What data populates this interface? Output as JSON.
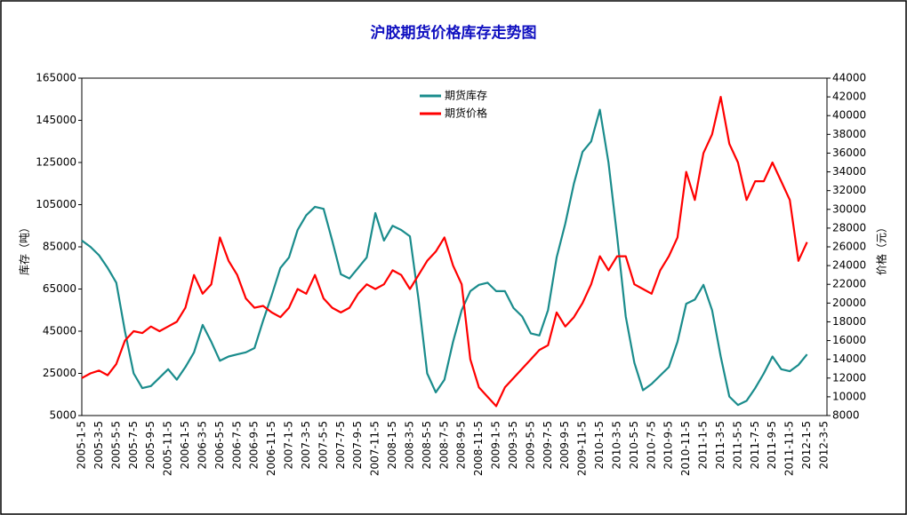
{
  "chart_data": {
    "type": "line",
    "title": "沪胶期货价格库存走势图",
    "y_label": "库存（吨）",
    "y2_label": "价格（元）",
    "categories": [
      "2005-1-5",
      null,
      "2005-3-5",
      null,
      "2005-5-5",
      null,
      "2005-7-5",
      null,
      "2005-9-5",
      null,
      "2005-11-5",
      null,
      "2006-1-5",
      null,
      "2006-3-5",
      null,
      "2006-5-5",
      null,
      "2006-7-5",
      null,
      "2006-9-5",
      null,
      "2006-11-5",
      null,
      "2007-1-5",
      null,
      "2007-3-5",
      null,
      "2007-5-5",
      null,
      "2007-7-5",
      null,
      "2007-9-5",
      null,
      "2007-11-5",
      null,
      "2008-1-5",
      null,
      "2008-3-5",
      null,
      "2008-5-5",
      null,
      "2008-7-5",
      null,
      "2008-9-5",
      null,
      "2008-11-5",
      null,
      "2009-1-5",
      null,
      "2009-3-5",
      null,
      "2009-5-5",
      null,
      "2009-7-5",
      null,
      "2009-9-5",
      null,
      "2009-11-5",
      null,
      "2010-1-5",
      null,
      "2010-3-5",
      null,
      "2010-5-5",
      null,
      "2010-7-5",
      null,
      "2010-9-5",
      null,
      "2010-11-5",
      null,
      "2011-1-5",
      null,
      "2011-3-5",
      null,
      "2011-5-5",
      null,
      "2011-7-5",
      null,
      "2011-9-5",
      null,
      "2011-11-5",
      null,
      "2012-1-5",
      null,
      "2012-3-5"
    ],
    "series": [
      {
        "name": "期货库存",
        "color": "#1a8c8c",
        "values": [
          88000,
          85000,
          81000,
          75000,
          68000,
          45000,
          25000,
          18000,
          19000,
          23000,
          27000,
          22000,
          28000,
          35000,
          48000,
          40000,
          31000,
          33000,
          34000,
          35000,
          37000,
          50000,
          62000,
          75000,
          80000,
          93000,
          100000,
          104000,
          103000,
          88000,
          72000,
          70000,
          75000,
          80000,
          101000,
          88000,
          95000,
          93000,
          90000,
          60000,
          25000,
          16000,
          22000,
          40000,
          55000,
          64000,
          67000,
          68000,
          64000,
          64000,
          56000,
          52000,
          44000,
          43000,
          55000,
          80000,
          96000,
          115000,
          130000,
          135000,
          150000,
          125000,
          90000,
          52000,
          30000,
          17000,
          20000,
          24000,
          28000,
          40000,
          58000,
          60000,
          67000,
          55000,
          33000,
          14000,
          10000,
          12000,
          18000,
          25000,
          33000,
          27000,
          26000,
          29000,
          34000,
          null,
          null
        ]
      },
      {
        "name": "期货价格",
        "color": "#ff0000",
        "axis": "y2",
        "values": [
          12000,
          12500,
          12800,
          12300,
          13500,
          16000,
          17000,
          16800,
          17500,
          17000,
          17500,
          18000,
          19500,
          23000,
          21000,
          22000,
          27000,
          24500,
          23000,
          20500,
          19500,
          19700,
          19000,
          18500,
          19500,
          21500,
          21000,
          23000,
          20500,
          19500,
          19000,
          19500,
          21000,
          22000,
          21500,
          22000,
          23500,
          23000,
          21500,
          23000,
          24500,
          25500,
          27000,
          24000,
          22000,
          14000,
          11000,
          10000,
          9000,
          11000,
          12000,
          13000,
          14000,
          15000,
          15500,
          19000,
          17500,
          18500,
          20000,
          22000,
          25000,
          23500,
          25000,
          25000,
          22000,
          21500,
          21000,
          23500,
          25000,
          27000,
          34000,
          31000,
          36000,
          38000,
          42000,
          37000,
          35000,
          31000,
          33000,
          33000,
          35000,
          33000,
          31000,
          24500,
          26500,
          null,
          null
        ]
      }
    ],
    "ylim": [
      5000,
      165000
    ],
    "yticks": [
      5000,
      25000,
      45000,
      65000,
      85000,
      105000,
      125000,
      145000,
      165000
    ],
    "y2lim": [
      8000,
      44000
    ],
    "y2ticks": [
      8000,
      10000,
      12000,
      14000,
      16000,
      18000,
      20000,
      22000,
      24000,
      26000,
      28000,
      30000,
      32000,
      34000,
      36000,
      38000,
      40000,
      42000,
      44000
    ]
  }
}
